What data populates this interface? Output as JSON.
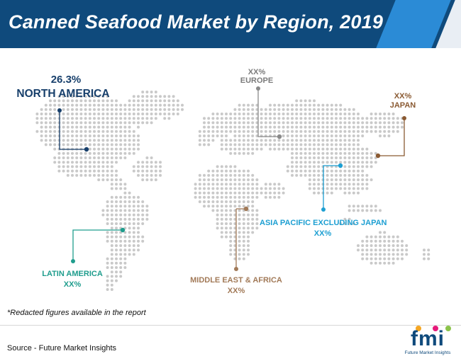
{
  "title": "Canned Seafood Market by Region, 2019",
  "regions": {
    "north_america": {
      "value": "26.3%",
      "name": "NORTH AMERICA",
      "color": "#173f6b"
    },
    "europe": {
      "value": "XX%",
      "name": "EUROPE",
      "color": "#7b7b7b"
    },
    "japan": {
      "value": "XX%",
      "name": "JAPAN",
      "color": "#8a5a32"
    },
    "asia_pacific": {
      "value": "XX%",
      "name": "ASIA PACIFIC EXCLUDING JAPAN",
      "color": "#1d9fd2"
    },
    "latin_america": {
      "value": "XX%",
      "name": "LATIN AMERICA",
      "color": "#1f9d8d"
    },
    "middle_east_africa": {
      "value": "XX%",
      "name": "MIDDLE EAST & AFRICA",
      "color": "#a27a58"
    }
  },
  "note": "*Redacted figures available in the report",
  "source": "Source - Future Market Insights",
  "logo": {
    "mark": "fmi",
    "tagline": "Future Market Insights"
  },
  "colors": {
    "header": "#0f4a7c",
    "header_accent": "#2b8bd6",
    "map_dots": "#c9c9c9"
  }
}
